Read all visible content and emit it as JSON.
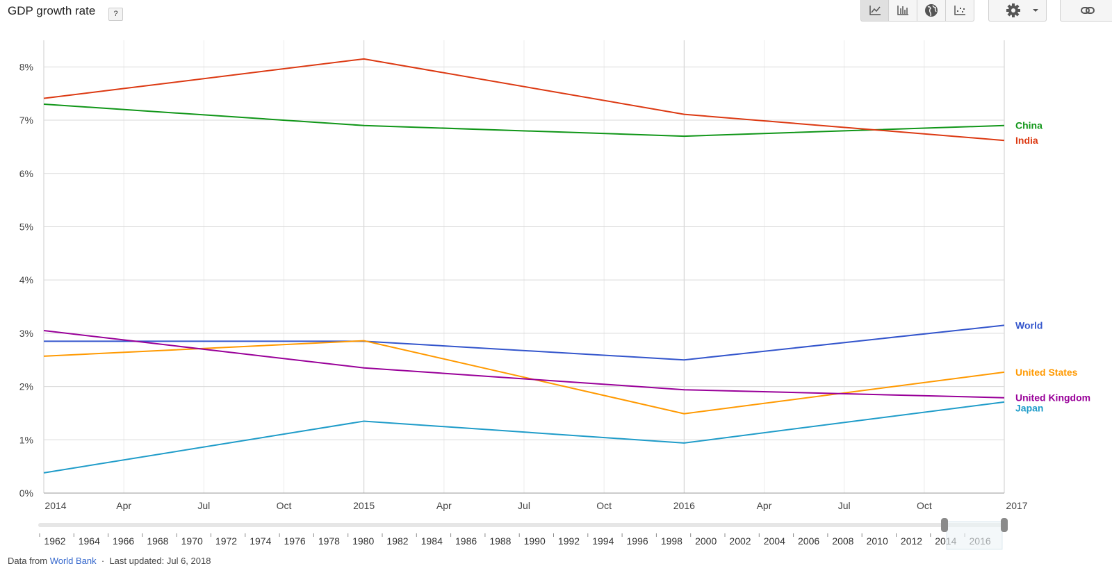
{
  "header": {
    "title": "GDP growth rate",
    "help_label": "?"
  },
  "toolbar": {
    "buttons": [
      {
        "icon": "line-chart-icon",
        "active": true
      },
      {
        "icon": "bar-chart-icon",
        "active": false
      },
      {
        "icon": "globe-icon",
        "active": false
      },
      {
        "icon": "scatter-plot-icon",
        "active": false
      }
    ],
    "settings_icon": "gear-icon",
    "link_icon": "link-icon"
  },
  "chart_data": {
    "type": "line",
    "title": "GDP growth rate",
    "x": [
      "2014",
      "2015",
      "2016",
      "2017"
    ],
    "x_tick_labels": [
      "2014",
      "Apr",
      "Jul",
      "Oct",
      "2015",
      "Apr",
      "Jul",
      "Oct",
      "2016",
      "Apr",
      "Jul",
      "Oct",
      "2017"
    ],
    "y_tick_labels": [
      "0%",
      "1%",
      "2%",
      "3%",
      "4%",
      "5%",
      "6%",
      "7%",
      "8%"
    ],
    "ylim": [
      0,
      8.5
    ],
    "grid": true,
    "legend": "right, end-of-line labels",
    "series": [
      {
        "name": "China",
        "color": "#109618",
        "values": [
          7.3,
          6.9,
          6.7,
          6.9
        ]
      },
      {
        "name": "India",
        "color": "#dc3912",
        "values": [
          7.41,
          8.15,
          7.11,
          6.62
        ]
      },
      {
        "name": "World",
        "color": "#3355cc",
        "values": [
          2.85,
          2.85,
          2.5,
          3.15
        ]
      },
      {
        "name": "United States",
        "color": "#ff9900",
        "values": [
          2.57,
          2.86,
          1.49,
          2.27
        ]
      },
      {
        "name": "United Kingdom",
        "color": "#990099",
        "values": [
          3.05,
          2.35,
          1.94,
          1.79
        ]
      },
      {
        "name": "Japan",
        "color": "#1f9cc9",
        "values": [
          0.38,
          1.35,
          0.94,
          1.71
        ]
      }
    ]
  },
  "timeline": {
    "years": [
      "1962",
      "1964",
      "1966",
      "1968",
      "1970",
      "1972",
      "1974",
      "1976",
      "1978",
      "1980",
      "1982",
      "1984",
      "1986",
      "1988",
      "1990",
      "1992",
      "1994",
      "1996",
      "1998",
      "2000",
      "2002",
      "2004",
      "2006",
      "2008",
      "2010",
      "2012",
      "2014",
      "2016"
    ],
    "selected_range": [
      "2014",
      "2017"
    ]
  },
  "footer": {
    "prefix": "Data from",
    "source": "World Bank",
    "updated": "Last updated: Jul 6, 2018"
  }
}
